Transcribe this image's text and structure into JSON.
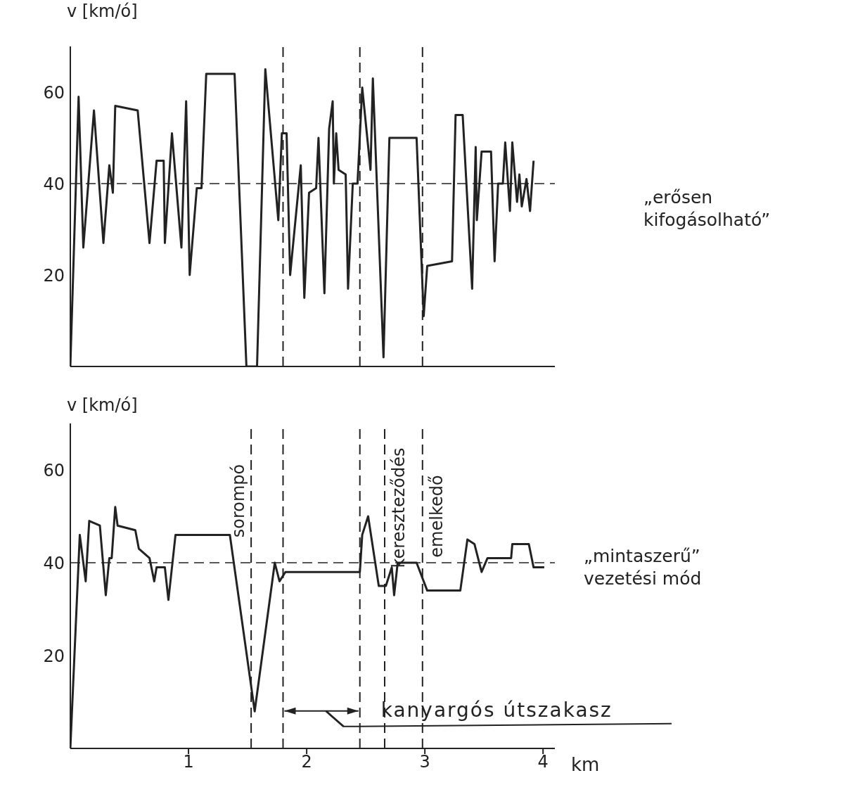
{
  "chart_data": [
    {
      "type": "line",
      "ylabel": "v [km/ó]",
      "xlim": [
        0,
        4.1
      ],
      "ylim": [
        0,
        70
      ],
      "yticks": [
        20,
        40,
        60
      ],
      "tick_labels": "y",
      "series": [
        {
          "name": "„erősen kifogásolható”",
          "color": "#222222",
          "x": [
            0,
            0.07,
            0.11,
            0.2,
            0.28,
            0.33,
            0.36,
            0.38,
            0.57,
            0.67,
            0.73,
            0.79,
            0.8,
            0.86,
            0.94,
            0.98,
            1.01,
            1.07,
            1.11,
            1.15,
            1.39,
            1.49,
            1.58,
            1.65,
            1.76,
            1.79,
            1.83,
            1.86,
            1.95,
            1.98,
            2.02,
            2.08,
            2.1,
            2.15,
            2.19,
            2.22,
            2.23,
            2.25,
            2.27,
            2.33,
            2.35,
            2.39,
            2.43,
            2.47,
            2.54,
            2.56,
            2.65,
            2.7,
            2.93,
            2.99,
            3.02,
            3.23,
            3.26,
            3.32,
            3.4,
            3.43,
            3.44,
            3.48,
            3.56,
            3.59,
            3.62,
            3.66,
            3.68,
            3.72,
            3.74,
            3.78,
            3.8,
            3.82,
            3.86,
            3.89,
            3.92
          ],
          "values": [
            0,
            59,
            26,
            56,
            27,
            44,
            38,
            57,
            56,
            27,
            45,
            45,
            27,
            51,
            26,
            58,
            20,
            39,
            39,
            64,
            64,
            0,
            0,
            65,
            32,
            51,
            51,
            20,
            44,
            15,
            38,
            39,
            50,
            16,
            52,
            58,
            40,
            51,
            43,
            42,
            17,
            40,
            40,
            61,
            43,
            63,
            2,
            50,
            50,
            11,
            22,
            23,
            55,
            55,
            17,
            48,
            32,
            47,
            47,
            23,
            40,
            40,
            49,
            34,
            49,
            36,
            42,
            35,
            41,
            34,
            45
          ]
        }
      ],
      "ref_lines": [
        {
          "axis": "y",
          "value": 40,
          "line_style": "dashed"
        },
        {
          "axis": "x",
          "value": 1.8,
          "line_style": "dashed"
        },
        {
          "axis": "x",
          "value": 2.45,
          "line_style": "dashed"
        },
        {
          "axis": "x",
          "value": 2.98,
          "line_style": "dashed"
        }
      ]
    },
    {
      "type": "line",
      "ylabel": "v [km/ó]",
      "xlabel": "km",
      "xlim": [
        0,
        4.1
      ],
      "ylim": [
        0,
        70
      ],
      "xticks": [
        1,
        2,
        3,
        4
      ],
      "yticks": [
        20,
        40,
        60
      ],
      "series": [
        {
          "name": "„mintaszerű” vezetési mód",
          "color": "#222222",
          "x": [
            0,
            0.08,
            0.13,
            0.16,
            0.25,
            0.3,
            0.33,
            0.35,
            0.38,
            0.4,
            0.55,
            0.58,
            0.67,
            0.71,
            0.73,
            0.8,
            0.83,
            0.89,
            1.35,
            1.56,
            1.73,
            1.77,
            1.82,
            2.45,
            2.47,
            2.52,
            2.61,
            2.67,
            2.72,
            2.74,
            2.77,
            2.93,
            3.02,
            3.3,
            3.36,
            3.42,
            3.48,
            3.53,
            3.73,
            3.74,
            3.88,
            3.92,
            4.01
          ],
          "values": [
            0,
            46,
            36,
            49,
            48,
            33,
            41,
            41,
            52,
            48,
            47,
            43,
            41,
            36,
            39,
            39,
            32,
            46,
            46,
            8,
            40,
            36,
            38,
            38,
            46,
            50,
            35,
            35,
            39,
            33,
            40,
            40,
            34,
            34,
            45,
            44,
            38,
            41,
            41,
            44,
            44,
            39,
            39
          ]
        }
      ],
      "ref_lines": [
        {
          "axis": "y",
          "value": 40,
          "line_style": "dashed"
        },
        {
          "axis": "x",
          "value": 1.53,
          "label": "sorompó",
          "line_style": "dashed"
        },
        {
          "axis": "x",
          "value": 1.8,
          "line_style": "dashed"
        },
        {
          "axis": "x",
          "value": 2.45,
          "line_style": "dashed"
        },
        {
          "axis": "x",
          "value": 2.66,
          "label": "kereszteződés",
          "line_style": "dashed"
        },
        {
          "axis": "x",
          "value": 2.98,
          "label": "emelkedő",
          "line_style": "dashed"
        }
      ],
      "annotations": [
        "kanyargós útszakasz"
      ]
    }
  ]
}
